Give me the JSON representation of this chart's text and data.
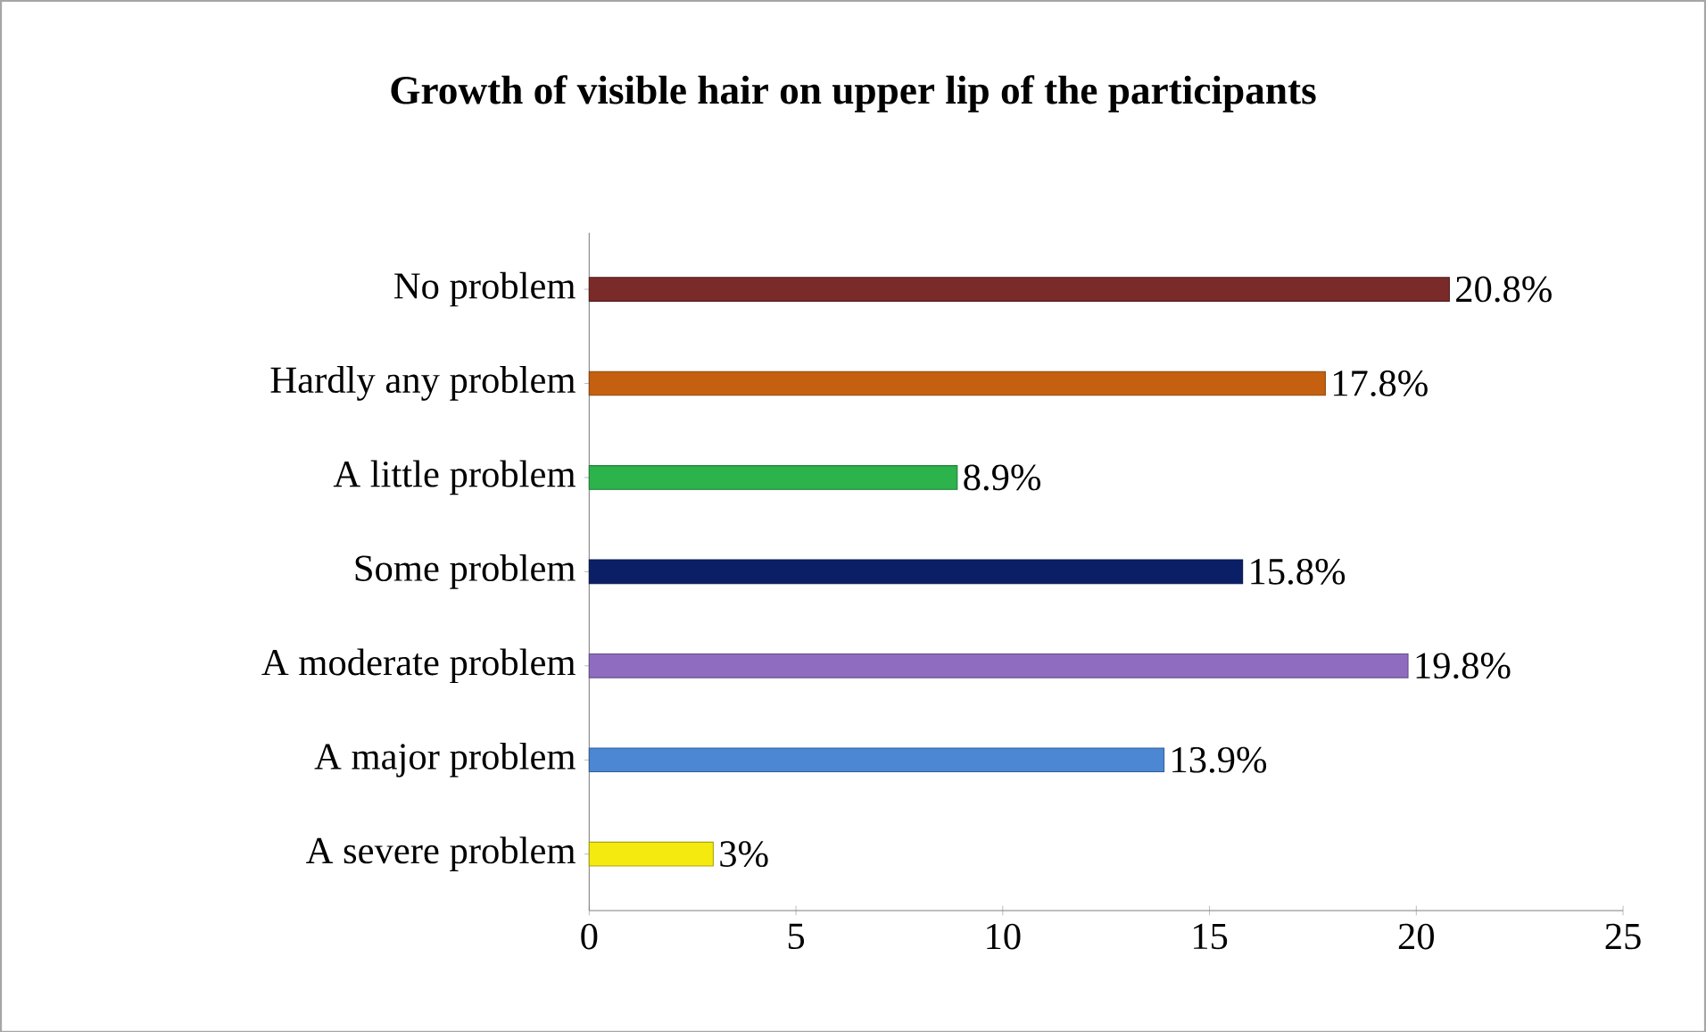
{
  "chart_data": {
    "type": "bar",
    "orientation": "horizontal",
    "title": "Growth of visible hair on upper lip of the participants",
    "categories": [
      "No problem",
      "Hardly any problem",
      "A little problem",
      "Some problem",
      "A moderate problem",
      "A major problem",
      "A severe problem"
    ],
    "values": [
      20.8,
      17.8,
      8.9,
      15.8,
      19.8,
      13.9,
      3
    ],
    "value_labels": [
      "20.8%",
      "17.8%",
      "8.9%",
      "15.8%",
      "19.8%",
      "13.9%",
      "3%"
    ],
    "colors": [
      "#7b2a2a",
      "#c4600f",
      "#2cb34c",
      "#0b1f66",
      "#8f6cc0",
      "#4b87d2",
      "#f5ea10"
    ],
    "xlim": [
      0,
      25
    ],
    "xticks": [
      0,
      5,
      10,
      15,
      20,
      25
    ]
  }
}
